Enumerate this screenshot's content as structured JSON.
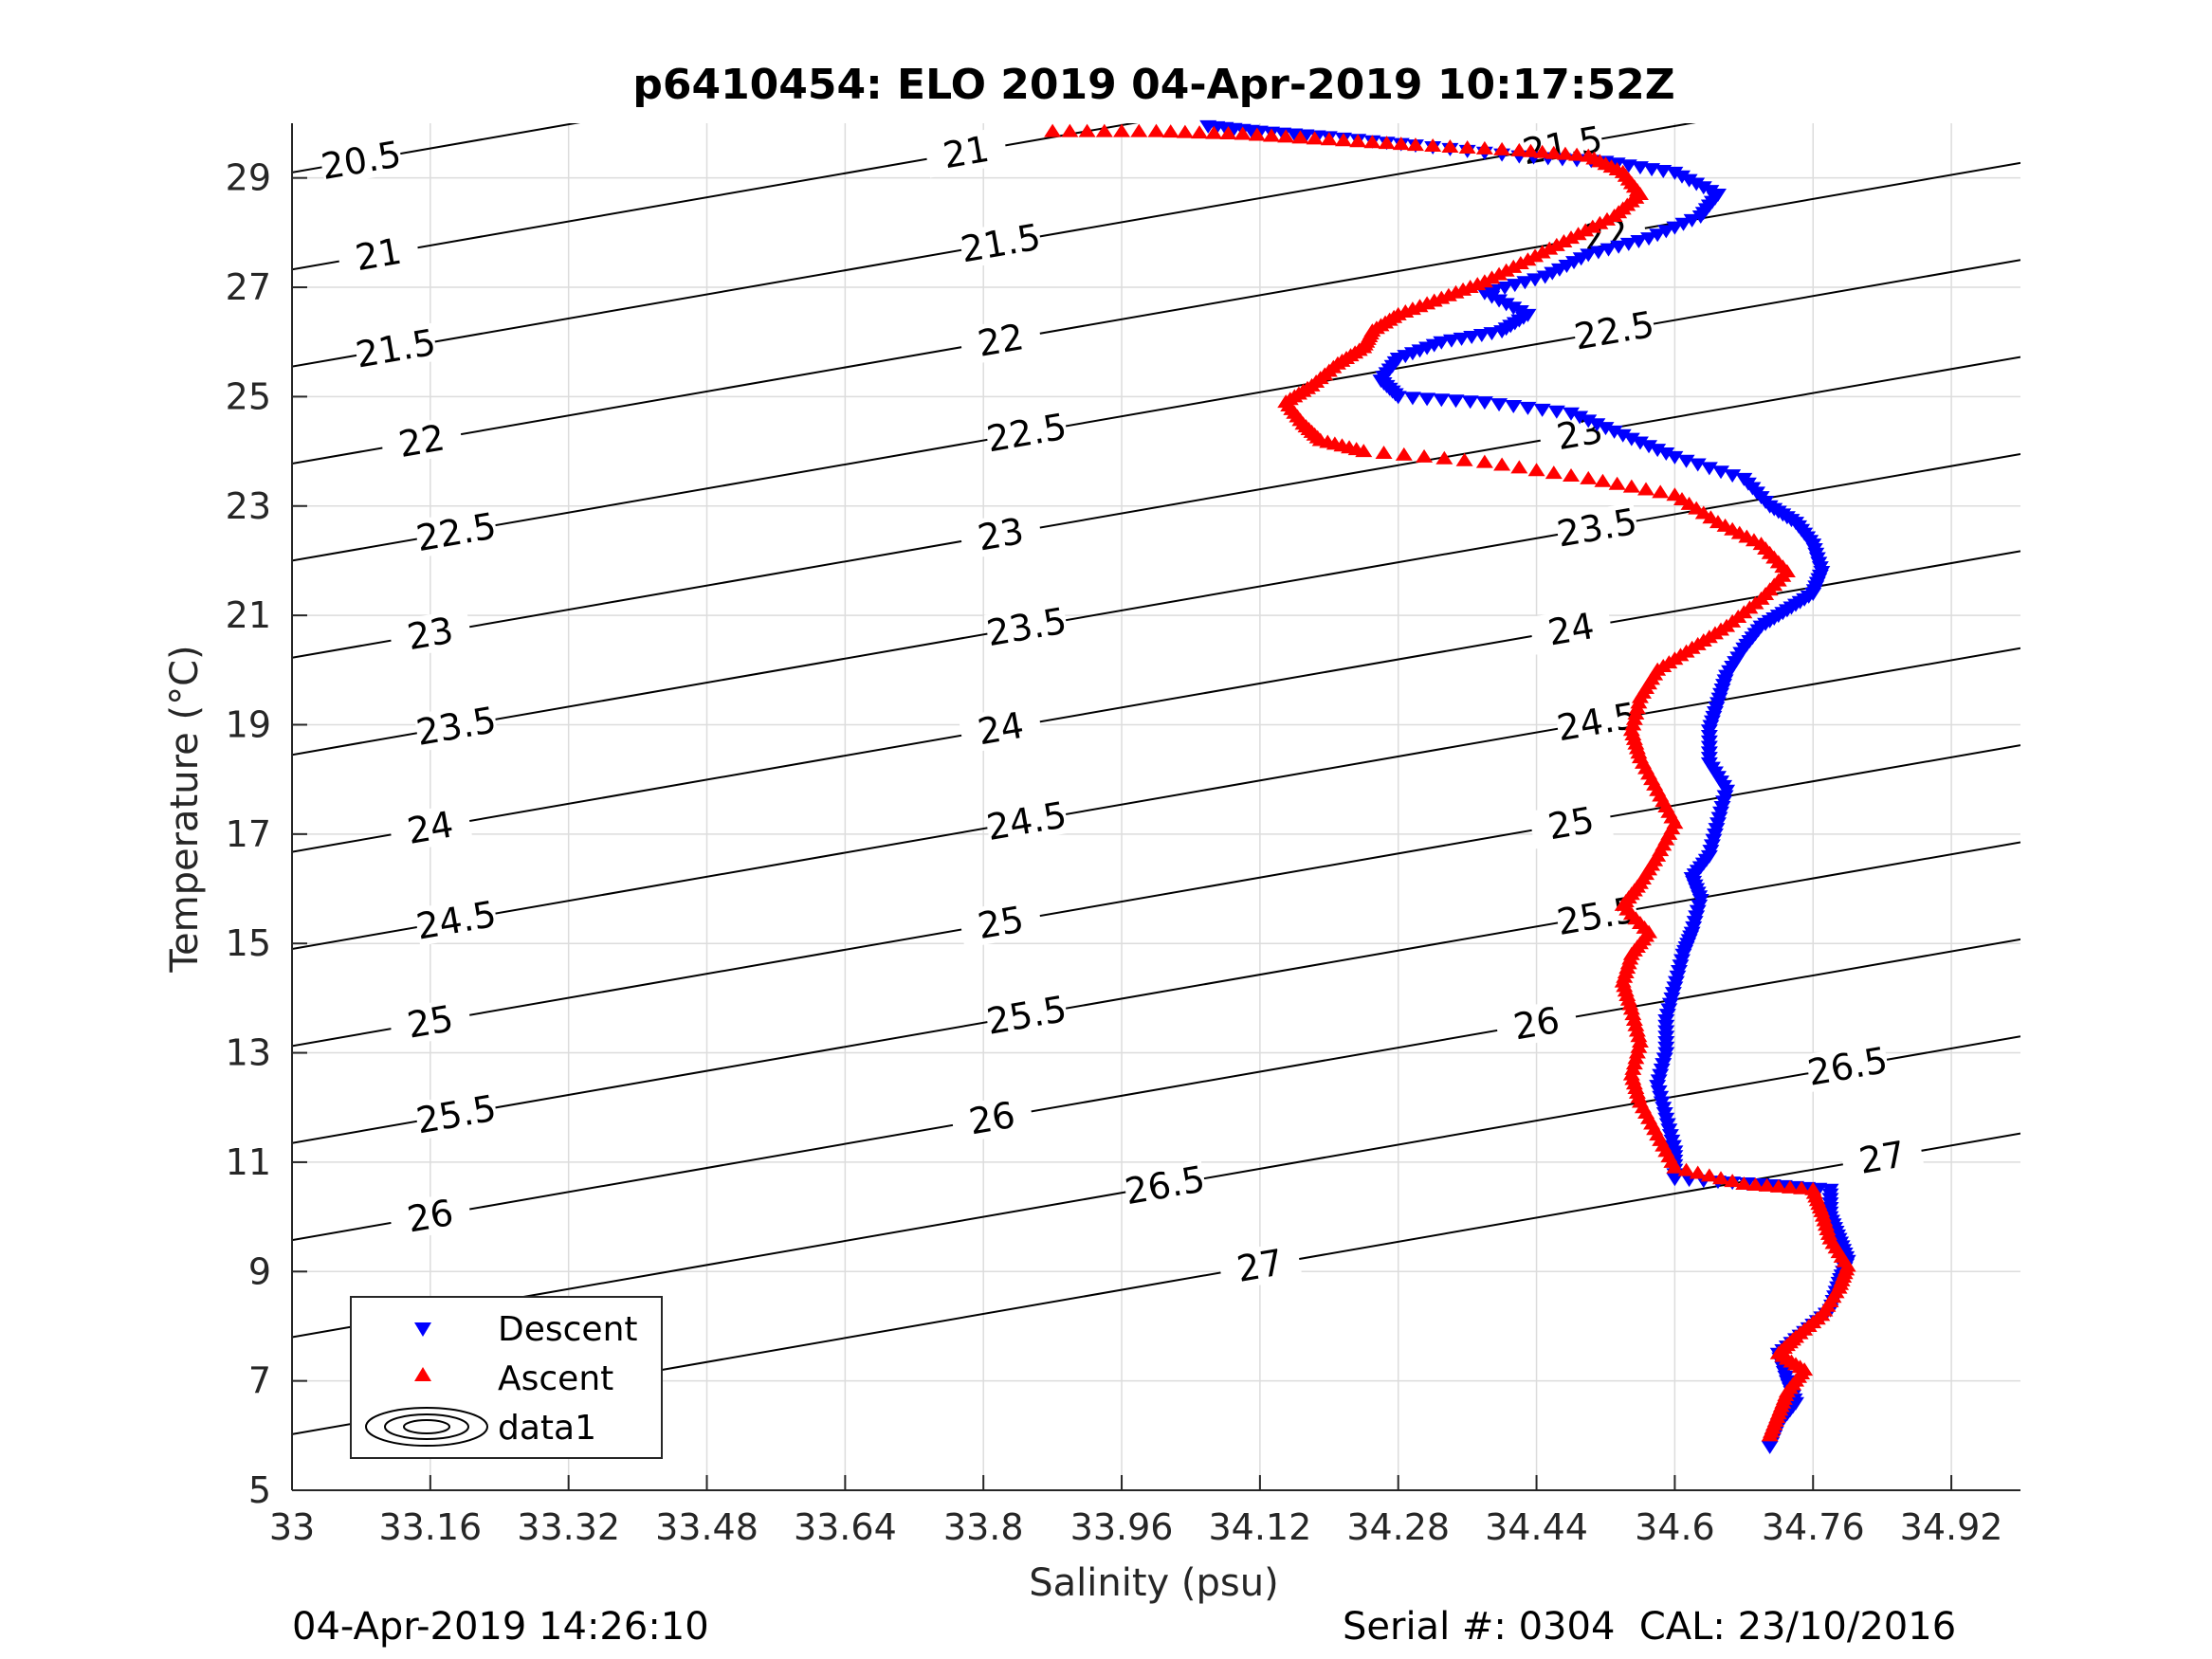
{
  "chart_data": {
    "type": "scatter",
    "title": "p6410454: ELO 2019 04-Apr-2019 10:17:52Z",
    "xlabel": "Salinity (psu)",
    "ylabel": "Temperature (°C)",
    "xlim": [
      33,
      35.0
    ],
    "ylim": [
      5,
      30
    ],
    "xticks": [
      "33",
      "33.16",
      "33.32",
      "33.48",
      "33.64",
      "33.8",
      "33.96",
      "34.12",
      "34.28",
      "34.44",
      "34.6",
      "34.76",
      "34.92"
    ],
    "yticks": [
      "5",
      "7",
      "9",
      "11",
      "13",
      "15",
      "17",
      "19",
      "21",
      "23",
      "25",
      "27",
      "29"
    ],
    "grid": true,
    "legend_position": "bottom-left",
    "legend": [
      "Descent",
      "Ascent",
      "data1"
    ],
    "colors": {
      "descent": "#0000ff",
      "ascent": "#ff0000",
      "contour": "#000000",
      "grid": "#dcdcdc",
      "axis": "#262626"
    },
    "series": [
      {
        "name": "Descent",
        "marker": "triangle-down",
        "color": "#0000ff",
        "points": [
          [
            34.71,
            5.8
          ],
          [
            34.72,
            6.2
          ],
          [
            34.74,
            6.6
          ],
          [
            34.73,
            7.0
          ],
          [
            34.72,
            7.5
          ],
          [
            34.75,
            7.9
          ],
          [
            34.78,
            8.3
          ],
          [
            34.79,
            8.8
          ],
          [
            34.8,
            9.2
          ],
          [
            34.79,
            9.6
          ],
          [
            34.78,
            10.0
          ],
          [
            34.78,
            10.5
          ],
          [
            34.7,
            10.6
          ],
          [
            34.6,
            10.7
          ],
          [
            34.6,
            11.2
          ],
          [
            34.59,
            11.8
          ],
          [
            34.58,
            12.4
          ],
          [
            34.59,
            13.0
          ],
          [
            34.59,
            13.6
          ],
          [
            34.6,
            14.2
          ],
          [
            34.61,
            14.8
          ],
          [
            34.62,
            15.2
          ],
          [
            34.63,
            15.8
          ],
          [
            34.62,
            16.2
          ],
          [
            34.64,
            16.6
          ],
          [
            34.65,
            17.2
          ],
          [
            34.66,
            17.8
          ],
          [
            34.64,
            18.3
          ],
          [
            34.64,
            18.9
          ],
          [
            34.65,
            19.4
          ],
          [
            34.66,
            19.9
          ],
          [
            34.68,
            20.4
          ],
          [
            34.7,
            20.8
          ],
          [
            34.73,
            21.1
          ],
          [
            34.76,
            21.4
          ],
          [
            34.77,
            21.8
          ],
          [
            34.76,
            22.3
          ],
          [
            34.74,
            22.7
          ],
          [
            34.71,
            23.0
          ],
          [
            34.68,
            23.5
          ],
          [
            34.6,
            23.9
          ],
          [
            34.54,
            24.3
          ],
          [
            34.48,
            24.7
          ],
          [
            34.38,
            24.9
          ],
          [
            34.28,
            25.0
          ],
          [
            34.26,
            25.3
          ],
          [
            34.28,
            25.7
          ],
          [
            34.33,
            26.0
          ],
          [
            34.4,
            26.2
          ],
          [
            34.43,
            26.5
          ],
          [
            34.38,
            26.9
          ],
          [
            34.45,
            27.2
          ],
          [
            34.5,
            27.6
          ],
          [
            34.57,
            27.9
          ],
          [
            34.63,
            28.3
          ],
          [
            34.65,
            28.7
          ],
          [
            34.6,
            29.1
          ],
          [
            34.52,
            29.3
          ],
          [
            34.42,
            29.4
          ],
          [
            34.3,
            29.6
          ],
          [
            34.2,
            29.75
          ],
          [
            34.12,
            29.85
          ],
          [
            34.06,
            29.95
          ]
        ]
      },
      {
        "name": "Ascent",
        "marker": "triangle-up",
        "color": "#ff0000",
        "points": [
          [
            34.71,
            6.0
          ],
          [
            34.72,
            6.4
          ],
          [
            34.73,
            6.8
          ],
          [
            34.75,
            7.2
          ],
          [
            34.72,
            7.5
          ],
          [
            34.74,
            7.8
          ],
          [
            34.77,
            8.2
          ],
          [
            34.79,
            8.7
          ],
          [
            34.8,
            9.1
          ],
          [
            34.78,
            9.6
          ],
          [
            34.77,
            10.1
          ],
          [
            34.76,
            10.5
          ],
          [
            34.68,
            10.6
          ],
          [
            34.6,
            10.9
          ],
          [
            34.58,
            11.5
          ],
          [
            34.56,
            12.1
          ],
          [
            34.55,
            12.6
          ],
          [
            34.56,
            13.2
          ],
          [
            34.55,
            13.8
          ],
          [
            34.54,
            14.3
          ],
          [
            34.55,
            14.8
          ],
          [
            34.57,
            15.2
          ],
          [
            34.54,
            15.7
          ],
          [
            34.56,
            16.1
          ],
          [
            34.58,
            16.6
          ],
          [
            34.6,
            17.2
          ],
          [
            34.58,
            17.8
          ],
          [
            34.56,
            18.4
          ],
          [
            34.55,
            18.9
          ],
          [
            34.56,
            19.5
          ],
          [
            34.58,
            20.0
          ],
          [
            34.62,
            20.4
          ],
          [
            34.66,
            20.8
          ],
          [
            34.7,
            21.3
          ],
          [
            34.73,
            21.8
          ],
          [
            34.7,
            22.3
          ],
          [
            34.65,
            22.7
          ],
          [
            34.6,
            23.2
          ],
          [
            34.5,
            23.5
          ],
          [
            34.38,
            23.8
          ],
          [
            34.24,
            24.0
          ],
          [
            34.19,
            24.2
          ],
          [
            34.17,
            24.5
          ],
          [
            34.15,
            24.9
          ],
          [
            34.18,
            25.2
          ],
          [
            34.21,
            25.6
          ],
          [
            34.24,
            25.9
          ],
          [
            34.25,
            26.2
          ],
          [
            34.28,
            26.5
          ],
          [
            34.33,
            26.8
          ],
          [
            34.38,
            27.1
          ],
          [
            34.43,
            27.5
          ],
          [
            34.48,
            27.9
          ],
          [
            34.53,
            28.3
          ],
          [
            34.56,
            28.7
          ],
          [
            34.54,
            29.1
          ],
          [
            34.5,
            29.4
          ],
          [
            34.42,
            29.5
          ],
          [
            34.3,
            29.6
          ],
          [
            34.2,
            29.7
          ],
          [
            34.1,
            29.8
          ],
          [
            34.0,
            29.85
          ],
          [
            33.88,
            29.85
          ]
        ]
      }
    ],
    "contours": [
      {
        "label": "20.5",
        "label_x": 33.08
      },
      {
        "label": "21",
        "label_x": [
          33.1,
          33.78
        ]
      },
      {
        "label": "21.5",
        "label_x": [
          33.12,
          33.82,
          34.47
        ]
      },
      {
        "label": "22",
        "label_x": [
          33.15,
          33.82,
          34.52
        ]
      },
      {
        "label": "22.5",
        "label_x": [
          33.19,
          33.85,
          34.53
        ]
      },
      {
        "label": "23",
        "label_x": [
          33.16,
          33.82,
          34.49
        ]
      },
      {
        "label": "23.5",
        "label_x": [
          33.19,
          33.85,
          34.51
        ]
      },
      {
        "label": "24",
        "label_x": [
          33.16,
          33.82,
          34.48
        ]
      },
      {
        "label": "24.5",
        "label_x": [
          33.19,
          33.85,
          34.51
        ]
      },
      {
        "label": "25",
        "label_x": [
          33.16,
          33.82,
          34.48
        ]
      },
      {
        "label": "25.5",
        "label_x": [
          33.19,
          33.85,
          34.51
        ]
      },
      {
        "label": "26",
        "label_x": [
          33.16,
          33.81,
          34.44
        ]
      },
      {
        "label": "26.5",
        "label_x": [
          34.01,
          34.8
        ]
      },
      {
        "label": "27",
        "label_x": [
          34.12,
          34.84
        ]
      }
    ]
  },
  "footer": {
    "timestamp": "04-Apr-2019 14:26:10",
    "serial": "Serial #: 0304  CAL: 23/10/2016"
  }
}
